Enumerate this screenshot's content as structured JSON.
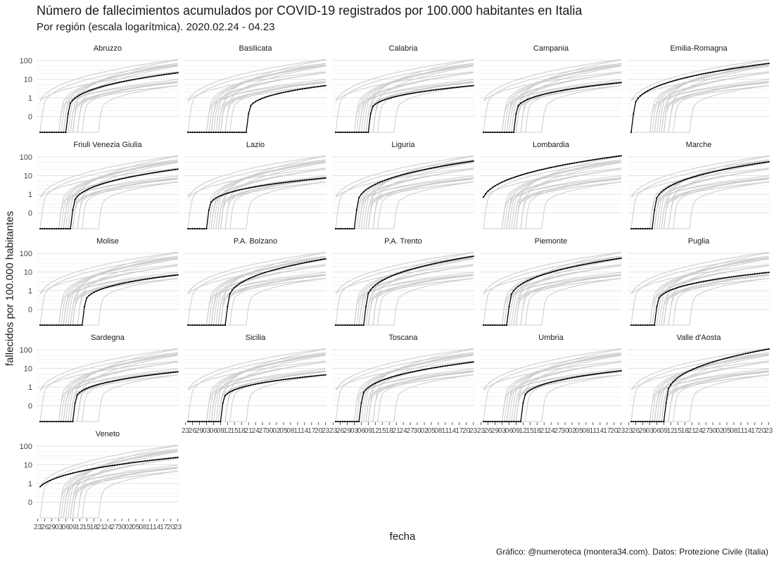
{
  "title": "Número de fallecimientos acumulados por COVID-19 registrados  por 100.000 habitantes en Italia",
  "subtitle": "Por región (escala logarítmica). 2020.02.24 - 04.23",
  "caption": "Gráfico: @numeroteca (montera34.com). Datos: Protezione Civile (Italia)",
  "chart_data": {
    "type": "line",
    "facet": "small-multiples",
    "ylabel": "fallecidos por 100.000 habitantes",
    "xlabel": "fecha",
    "y_scale": "log",
    "y_ticks": [
      "0",
      "1",
      "10",
      "100"
    ],
    "x_ticks": [
      "23",
      "26",
      "29",
      "03",
      "06",
      "09",
      "12",
      "15",
      "18",
      "21",
      "24",
      "27",
      "30",
      "02",
      "05",
      "08",
      "11",
      "14",
      "17",
      "20",
      "23"
    ],
    "date_range": [
      "2020-02-24",
      "2020-04-23"
    ],
    "background_series_color": "#cccccc",
    "highlight_color": "#000000",
    "series": [
      {
        "name": "Abruzzo",
        "start": "2020-03-07",
        "final": 22
      },
      {
        "name": "Basilicata",
        "start": "2020-03-21",
        "final": 4.5
      },
      {
        "name": "Calabria",
        "start": "2020-03-10",
        "final": 4.5
      },
      {
        "name": "Campania",
        "start": "2020-03-09",
        "final": 6.5
      },
      {
        "name": "Emilia-Romagna",
        "start": "2020-02-25",
        "final": 70
      },
      {
        "name": "Friuli Venezia Giulia",
        "start": "2020-03-09",
        "final": 22
      },
      {
        "name": "Lazio",
        "start": "2020-03-04",
        "final": 7.5
      },
      {
        "name": "Liguria",
        "start": "2020-03-04",
        "final": 60
      },
      {
        "name": "Lombardia",
        "start": "2020-02-23",
        "final": 115
      },
      {
        "name": "Marche",
        "start": "2020-03-05",
        "final": 55
      },
      {
        "name": "Molise",
        "start": "2020-03-14",
        "final": 7
      },
      {
        "name": "P.A. Bolzano",
        "start": "2020-03-12",
        "final": 50
      },
      {
        "name": "P.A. Trento",
        "start": "2020-03-08",
        "final": 70
      },
      {
        "name": "Piemonte",
        "start": "2020-03-06",
        "final": 55
      },
      {
        "name": "Puglia",
        "start": "2020-03-06",
        "final": 9.5
      },
      {
        "name": "Sardegna",
        "start": "2020-03-10",
        "final": 6.5
      },
      {
        "name": "Sicilia",
        "start": "2020-03-10",
        "final": 4.5
      },
      {
        "name": "Toscana",
        "start": "2020-03-06",
        "final": 22
      },
      {
        "name": "Umbria",
        "start": "2020-03-12",
        "final": 7.5
      },
      {
        "name": "Valle d'Aosta",
        "start": "2020-03-10",
        "final": 110
      },
      {
        "name": "Veneto",
        "start": "2020-02-22",
        "final": 25
      }
    ]
  }
}
